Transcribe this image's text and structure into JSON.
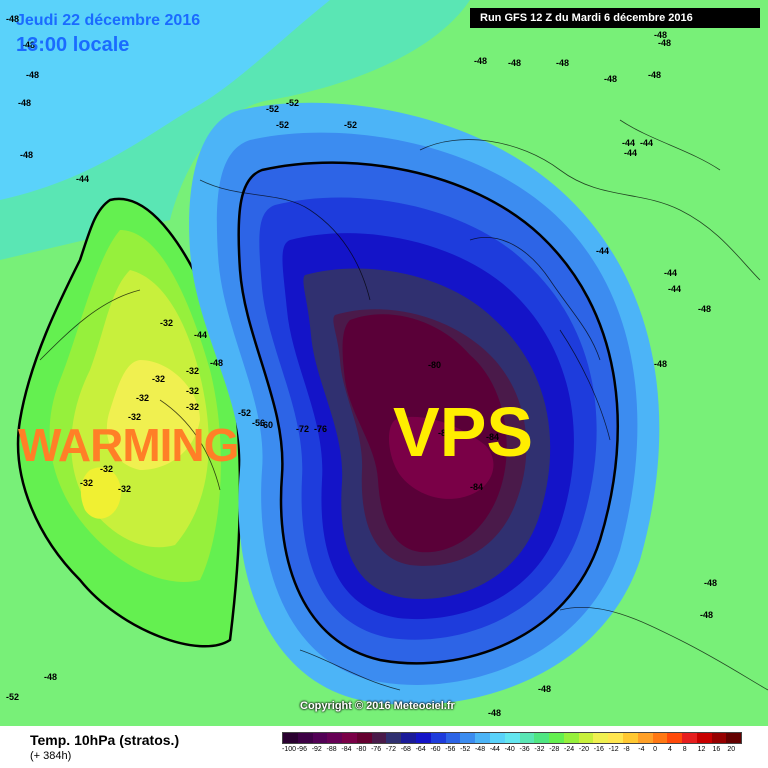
{
  "header": {
    "date": "Jeudi 22 décembre 2016",
    "time": "13:00 locale",
    "run": "Run GFS 12 Z du Mardi 6 décembre 2016"
  },
  "annotations": {
    "warming": "WARMING",
    "vps": "VPS"
  },
  "copyright": "Copyright © 2016 Meteociel.fr",
  "footer": {
    "parameter": "Temp. 10hPa (stratos.)",
    "lead": "(+ 384h)"
  },
  "scale": {
    "ticks": [
      "-100",
      "-96",
      "-92",
      "-88",
      "-84",
      "-80",
      "-76",
      "-72",
      "-68",
      "-64",
      "-60",
      "-56",
      "-52",
      "-48",
      "-44",
      "-40",
      "-36",
      "-32",
      "-28",
      "-24",
      "-20",
      "-16",
      "-12",
      "-8",
      "-4",
      "0",
      "4",
      "8",
      "12",
      "16",
      "20"
    ],
    "colors": [
      "#2a0030",
      "#3d0045",
      "#520055",
      "#660055",
      "#7a0047",
      "#650030",
      "#4a1a4a",
      "#303070",
      "#1a1a99",
      "#1414c8",
      "#1e3cdc",
      "#2d64e6",
      "#3c8cf0",
      "#4cb4f7",
      "#5ad2fa",
      "#64e6f0",
      "#5ae6b4",
      "#50e682",
      "#64f050",
      "#96f03c",
      "#c8f03c",
      "#f0f050",
      "#ffe650",
      "#ffc832",
      "#ffa028",
      "#ff7814",
      "#ff4a0a",
      "#e61e1e",
      "#c80000",
      "#960000",
      "#640000"
    ]
  },
  "map_labels": [
    "-48",
    "-44",
    "-48",
    "-48",
    "-48",
    "-48",
    "-48",
    "-48",
    "-52",
    "-52",
    "-52",
    "-52",
    "-44",
    "-44",
    "-44",
    "-44",
    "-44",
    "-44",
    "-48",
    "-48",
    "-48",
    "-48",
    "-48",
    "-48",
    "-48",
    "-32",
    "-32",
    "-32",
    "-32",
    "-32",
    "-32",
    "-32",
    "-32",
    "-32",
    "-32",
    "-44",
    "-48",
    "-52",
    "-56",
    "-60",
    "-72",
    "-76",
    "-80",
    "-84",
    "-84",
    "-84",
    "-48",
    "-48",
    "-48",
    "-52",
    "-48",
    "-48"
  ],
  "colors": {
    "cold_core": "#5a0038",
    "warm_core": "#f0f032",
    "background": "#78f078"
  }
}
